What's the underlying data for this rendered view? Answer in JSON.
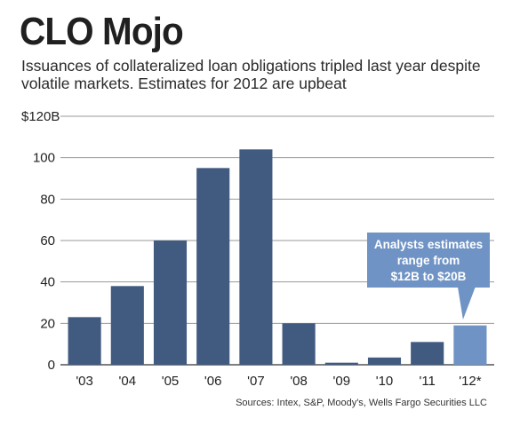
{
  "title": "CLO Mojo",
  "subtitle": "Issuances of collateralized loan obligations tripled last year despite volatile markets. Estimates for 2012 are upbeat",
  "source": "Sources: Intex, S&P, Moody's, Wells Fargo Securities LLC",
  "colors": {
    "bar": "#415a80",
    "bar_estimate": "#6f93c4",
    "callout": "#6f93c4",
    "grid": "#9a9a9a"
  },
  "chart_data": {
    "type": "bar",
    "categories": [
      "'03",
      "'04",
      "'05",
      "'06",
      "'07",
      "'08",
      "'09",
      "'10",
      "'11",
      "'12*"
    ],
    "values": [
      23,
      38,
      60,
      95,
      104,
      20,
      1,
      3.5,
      11,
      19
    ],
    "estimate_index": 9,
    "ylim": [
      0,
      120
    ],
    "yticks": [
      0,
      20,
      40,
      60,
      80,
      100,
      120
    ],
    "ytick_labels": [
      "0",
      "20",
      "40",
      "60",
      "80",
      "100",
      "$120B"
    ],
    "grid": true,
    "annotation": {
      "lines": [
        "Analysts estimates",
        "range from",
        "$12B to $20B"
      ]
    }
  }
}
